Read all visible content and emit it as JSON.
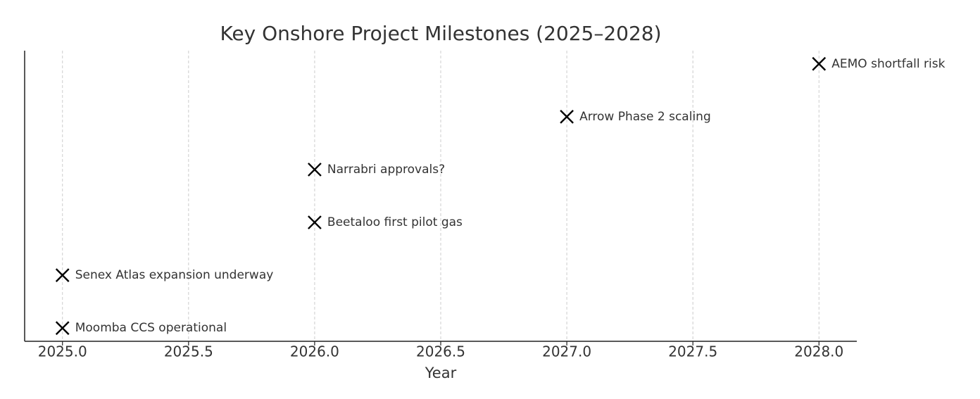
{
  "chart_data": {
    "type": "scatter",
    "title": "Key Onshore Project Milestones (2025–2028)",
    "x_label": "Year",
    "x": [
      2025,
      2025,
      2026,
      2026,
      2027,
      2028
    ],
    "y": [
      0,
      1,
      2,
      3,
      4,
      5
    ],
    "labels": [
      "Moomba CCS operational",
      "Senex Atlas expansion underway",
      "Beetaloo first pilot gas",
      "Narrabri approvals?",
      "Arrow Phase 2 scaling",
      "AEMO shortfall risk"
    ],
    "color": "#000000",
    "xlim": [
      2024.85,
      2028.15
    ],
    "ylim": [
      -0.25,
      5.25
    ],
    "xticks": [
      {
        "value": 2025,
        "label": "2025.0"
      },
      {
        "value": 2025.5,
        "label": "2025.5"
      },
      {
        "value": 2026,
        "label": "2026.0"
      },
      {
        "value": 2026.5,
        "label": "2026.5"
      },
      {
        "value": 2027,
        "label": "2027.0"
      },
      {
        "value": 2027.5,
        "label": "2027.5"
      },
      {
        "value": 2028,
        "label": "2028.0"
      }
    ],
    "grid": true
  }
}
